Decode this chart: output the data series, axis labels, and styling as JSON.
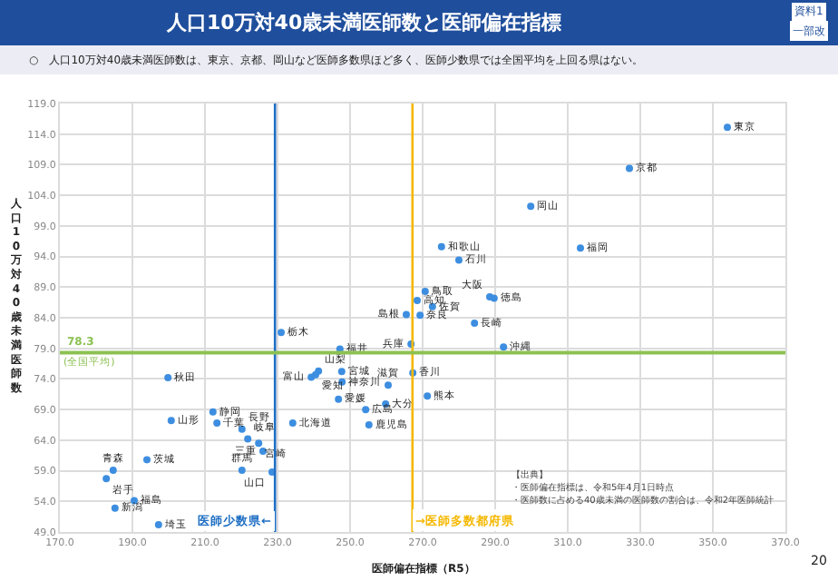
{
  "chart_data": {
    "type": "scatter",
    "title": "人口10万対40歳未満医師数と医師偏在指標",
    "subtitle": "○　人口10万対40歳未満医師数は、東京、京都、岡山など医師多数県ほど多く、医師少数県では全国平均を上回る県はない。",
    "xlabel": "医師偏在指標（R5）",
    "ylabel": "人口10万対40歳未満医師数",
    "series": [
      {
        "color": "#3d8ee0",
        "x": [
          354,
          327,
          299.8,
          275.2,
          280,
          313.5,
          270.7,
          268.5,
          272.7,
          288.5,
          289.7,
          265.5,
          269.3,
          284.3,
          266.8,
          292.3,
          231,
          247.2,
          241.3,
          239.3,
          240.5,
          247.7,
          247.8,
          260.5,
          267.3,
          271.3,
          246.8,
          259.8,
          254.3,
          255.2,
          234.2,
          199.8,
          212.2,
          200.7,
          213.3,
          220.2,
          221.8,
          224.8,
          226,
          220.2,
          228.5,
          194,
          184.7,
          182.8,
          190.5,
          185.2,
          197.2
        ],
        "values": [
          115.1,
          108.4,
          102.2,
          95.6,
          93.4,
          95.4,
          88.3,
          86.8,
          85.8,
          87.4,
          87.2,
          84.5,
          84.4,
          83.1,
          79.7,
          79.2,
          81.6,
          78.9,
          75.3,
          74.3,
          74.7,
          75.2,
          73.5,
          73.0,
          75.0,
          71.2,
          70.7,
          69.9,
          69.0,
          66.5,
          66.8,
          74.2,
          68.6,
          67.2,
          66.8,
          65.8,
          64.2,
          63.5,
          62.2,
          59.1,
          58.8,
          60.8,
          59.1,
          57.7,
          54.1,
          52.9,
          50.2
        ],
        "value_labels": [
          "東京",
          "京都",
          "岡山",
          "和歌山",
          "石川",
          "福岡",
          "鳥取",
          "高知",
          "佐賀",
          "大阪",
          "徳島",
          "島根",
          "奈良",
          "長崎",
          "兵庫",
          "沖縄",
          "栃木",
          "福井",
          "山梨",
          "富山",
          "愛知",
          "宮城",
          "神奈川",
          "滋賀",
          "香川",
          "熊本",
          "愛媛",
          "大分",
          "広島",
          "鹿児島",
          "北海道",
          "秋田",
          "静岡",
          "山形",
          "千葉",
          "長野",
          "岐阜",
          "宮崎",
          "三重",
          "群馬",
          "山口",
          "茨城",
          "青森",
          "岩手",
          "福島",
          "新潟",
          "埼玉"
        ]
      }
    ],
    "marker": "circle",
    "xlim": [
      170,
      370
    ],
    "xticks": [
      {
        "value": 170,
        "label": "170.0"
      },
      {
        "value": 190,
        "label": "190.0"
      },
      {
        "value": 210,
        "label": "210.0"
      },
      {
        "value": 230,
        "label": "230.0"
      },
      {
        "value": 250,
        "label": "250.0"
      },
      {
        "value": 270,
        "label": "270.0"
      },
      {
        "value": 290,
        "label": "290.0"
      },
      {
        "value": 310,
        "label": "310.0"
      },
      {
        "value": 330,
        "label": "330.0"
      },
      {
        "value": 350,
        "label": "350.0"
      },
      {
        "value": 370,
        "label": "370.0"
      }
    ],
    "ylim": [
      49,
      119
    ],
    "yticks": [
      {
        "value": 49,
        "label": "49.0"
      },
      {
        "value": 54,
        "label": "54.0"
      },
      {
        "value": 59,
        "label": "59.0"
      },
      {
        "value": 64,
        "label": "64.0"
      },
      {
        "value": 69,
        "label": "69.0"
      },
      {
        "value": 74,
        "label": "74.0"
      },
      {
        "value": 79,
        "label": "79.0"
      },
      {
        "value": 84,
        "label": "84.0"
      },
      {
        "value": 89,
        "label": "89.0"
      },
      {
        "value": 94,
        "label": "94.0"
      },
      {
        "value": 99,
        "label": "99.0"
      },
      {
        "value": 104,
        "label": "104.0"
      },
      {
        "value": 109,
        "label": "109.0"
      },
      {
        "value": 114,
        "label": "114.0"
      },
      {
        "value": 119,
        "label": "119.0"
      }
    ],
    "grid": true,
    "ref_lines": [
      {
        "axis": "x",
        "value": 229.3,
        "label": "医師少数県←",
        "color": "#1f6fc4"
      },
      {
        "axis": "x",
        "value": 267.2,
        "label": "→医師多数都府県",
        "color": "#f5b800"
      },
      {
        "axis": "y",
        "value": 78.3,
        "label": "78.3",
        "color": "#8cc152"
      }
    ],
    "annotations": [
      {
        "text": "(全国平均)",
        "x": 170,
        "y": 78.3
      },
      "【出典】",
      "・医師偏在指標は、令和5年4月1日時点",
      "・医師数に占める40歳未満の医師数の割合は、令和2年医師統計",
      "資料1",
      "一部改",
      "20"
    ]
  }
}
